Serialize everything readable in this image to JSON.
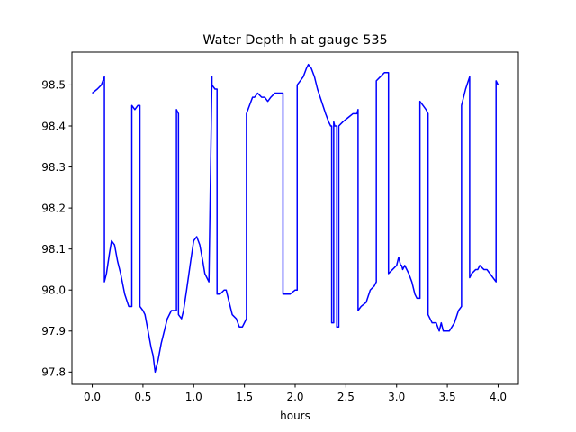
{
  "chart_data": {
    "type": "line",
    "title": "Water Depth h at gauge 535",
    "xlabel": "hours",
    "ylabel": "",
    "xlim": [
      -0.2,
      4.2
    ],
    "ylim": [
      97.77,
      98.58
    ],
    "xticks": [
      0.0,
      0.5,
      1.0,
      1.5,
      2.0,
      2.5,
      3.0,
      3.5,
      4.0
    ],
    "xtick_labels": [
      "0.0",
      "0.5",
      "1.0",
      "1.5",
      "2.0",
      "2.5",
      "3.0",
      "3.5",
      "4.0"
    ],
    "yticks": [
      97.8,
      97.9,
      98.0,
      98.1,
      98.2,
      98.3,
      98.4,
      98.5
    ],
    "ytick_labels": [
      "97.8",
      "97.9",
      "98.0",
      "98.1",
      "98.2",
      "98.3",
      "98.4",
      "98.5"
    ],
    "grid": false,
    "series": [
      {
        "color": "#0000ff",
        "x": [
          0.0,
          0.05,
          0.09,
          0.12,
          0.12,
          0.14,
          0.17,
          0.19,
          0.22,
          0.25,
          0.28,
          0.32,
          0.36,
          0.39,
          0.39,
          0.42,
          0.45,
          0.47,
          0.47,
          0.5,
          0.52,
          0.55,
          0.58,
          0.6,
          0.62,
          0.65,
          0.68,
          0.71,
          0.74,
          0.78,
          0.81,
          0.83,
          0.83,
          0.85,
          0.85,
          0.88,
          0.9,
          0.93,
          0.97,
          1.0,
          1.03,
          1.06,
          1.09,
          1.11,
          1.15,
          1.18,
          1.18,
          1.21,
          1.23,
          1.23,
          1.26,
          1.3,
          1.32,
          1.35,
          1.38,
          1.42,
          1.45,
          1.48,
          1.52,
          1.52,
          1.55,
          1.58,
          1.6,
          1.63,
          1.67,
          1.7,
          1.73,
          1.76,
          1.8,
          1.84,
          1.88,
          1.88,
          1.9,
          1.95,
          2.0,
          2.02,
          2.02,
          2.05,
          2.08,
          2.11,
          2.13,
          2.16,
          2.19,
          2.22,
          2.26,
          2.3,
          2.33,
          2.35,
          2.36,
          2.36,
          2.38,
          2.38,
          2.39,
          2.41,
          2.41,
          2.43,
          2.43,
          2.47,
          2.52,
          2.57,
          2.61,
          2.62,
          2.62,
          2.65,
          2.7,
          2.74,
          2.78,
          2.8,
          2.8,
          2.84,
          2.88,
          2.92,
          2.92,
          2.96,
          3.0,
          3.02,
          3.04,
          3.05,
          3.06,
          3.08,
          3.12,
          3.15,
          3.18,
          3.2,
          3.23,
          3.23,
          3.26,
          3.29,
          3.31,
          3.31,
          3.35,
          3.39,
          3.42,
          3.44,
          3.46,
          3.48,
          3.5,
          3.52,
          3.57,
          3.61,
          3.64,
          3.64,
          3.68,
          3.72,
          3.72,
          3.74,
          3.78,
          3.8,
          3.82,
          3.86,
          3.89,
          3.92,
          3.95,
          3.98,
          3.98,
          4.0
        ],
        "y": [
          98.48,
          98.49,
          98.5,
          98.52,
          98.02,
          98.04,
          98.09,
          98.12,
          98.11,
          98.07,
          98.04,
          97.99,
          97.96,
          97.96,
          98.45,
          98.44,
          98.45,
          98.45,
          97.96,
          97.95,
          97.94,
          97.9,
          97.86,
          97.84,
          97.8,
          97.83,
          97.87,
          97.9,
          97.93,
          97.95,
          97.95,
          97.95,
          98.44,
          98.43,
          97.94,
          97.93,
          97.95,
          98.0,
          98.07,
          98.12,
          98.13,
          98.11,
          98.07,
          98.04,
          98.02,
          98.52,
          98.5,
          98.49,
          98.49,
          97.99,
          97.99,
          98.0,
          98.0,
          97.97,
          97.94,
          97.93,
          97.91,
          97.91,
          97.93,
          98.43,
          98.45,
          98.47,
          98.47,
          98.48,
          98.47,
          98.47,
          98.46,
          98.47,
          98.48,
          98.48,
          98.48,
          97.99,
          97.99,
          97.99,
          98.0,
          98.0,
          98.5,
          98.51,
          98.52,
          98.54,
          98.55,
          98.54,
          98.52,
          98.49,
          98.46,
          98.43,
          98.41,
          98.4,
          98.4,
          97.92,
          97.92,
          98.41,
          98.4,
          98.4,
          97.91,
          97.91,
          98.4,
          98.41,
          98.42,
          98.43,
          98.43,
          98.44,
          97.95,
          97.96,
          97.97,
          98.0,
          98.01,
          98.02,
          98.51,
          98.52,
          98.53,
          98.53,
          98.04,
          98.05,
          98.06,
          98.08,
          98.06,
          98.06,
          98.05,
          98.06,
          98.04,
          98.02,
          97.99,
          97.98,
          97.98,
          98.46,
          98.45,
          98.44,
          98.43,
          97.94,
          97.92,
          97.92,
          97.9,
          97.92,
          97.9,
          97.9,
          97.9,
          97.9,
          97.92,
          97.95,
          97.96,
          98.45,
          98.49,
          98.52,
          98.03,
          98.04,
          98.05,
          98.05,
          98.06,
          98.05,
          98.05,
          98.04,
          98.03,
          98.02,
          98.51,
          98.5
        ]
      }
    ]
  }
}
